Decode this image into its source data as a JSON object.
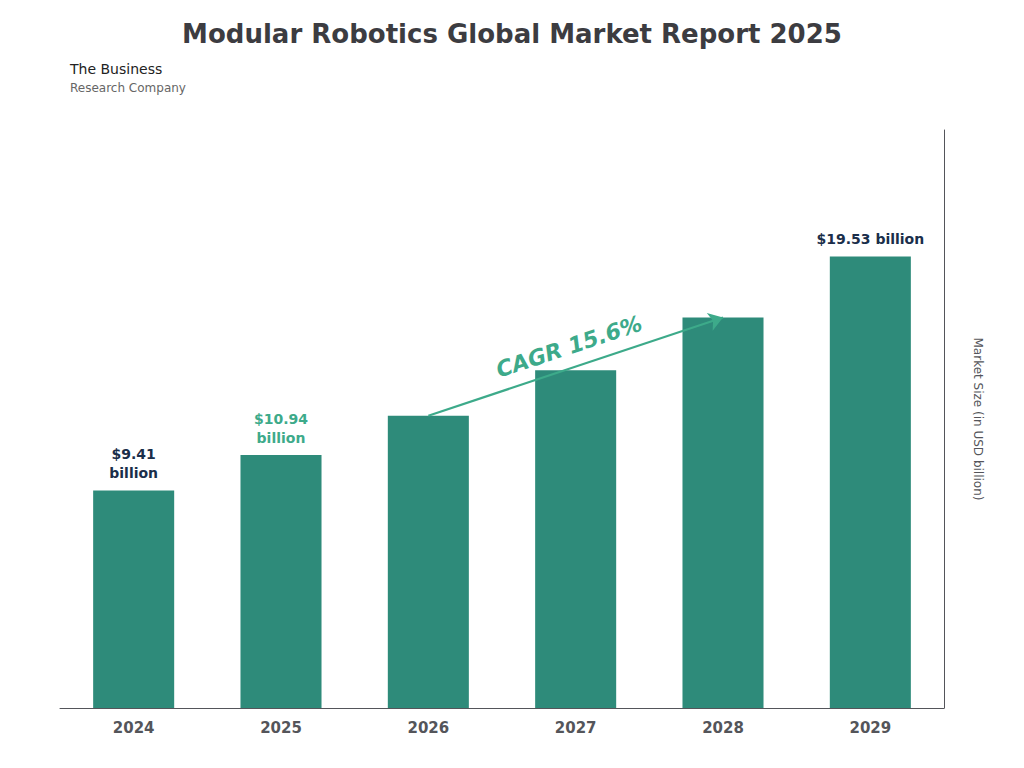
{
  "chart_data": {
    "type": "bar",
    "title": "Modular Robotics Global Market Report 2025",
    "categories": [
      "2024",
      "2025",
      "2026",
      "2027",
      "2028",
      "2029"
    ],
    "values": [
      9.41,
      10.94,
      12.64,
      14.61,
      16.89,
      19.53
    ],
    "color": "#2E8B7A",
    "ylabel": "Market Size (in USD billion)",
    "ylim": [
      0,
      25
    ],
    "grid": false,
    "tick_labels": "x",
    "annotations": [
      {
        "text": "$9.41\nbillion",
        "x": "2024",
        "color": "#1a2e4a"
      },
      {
        "text": "$10.94\nbillion",
        "x": "2025",
        "color": "#3DAA8A"
      },
      {
        "text": "$19.53 billion",
        "x": "2029",
        "color": "#1a2e4a"
      },
      {
        "text": "CAGR 15.6%",
        "from": "2026",
        "to": "2028",
        "color": "#3DAA8A"
      },
      {
        "text": "The Business"
      },
      {
        "text": "Research Company"
      }
    ]
  }
}
